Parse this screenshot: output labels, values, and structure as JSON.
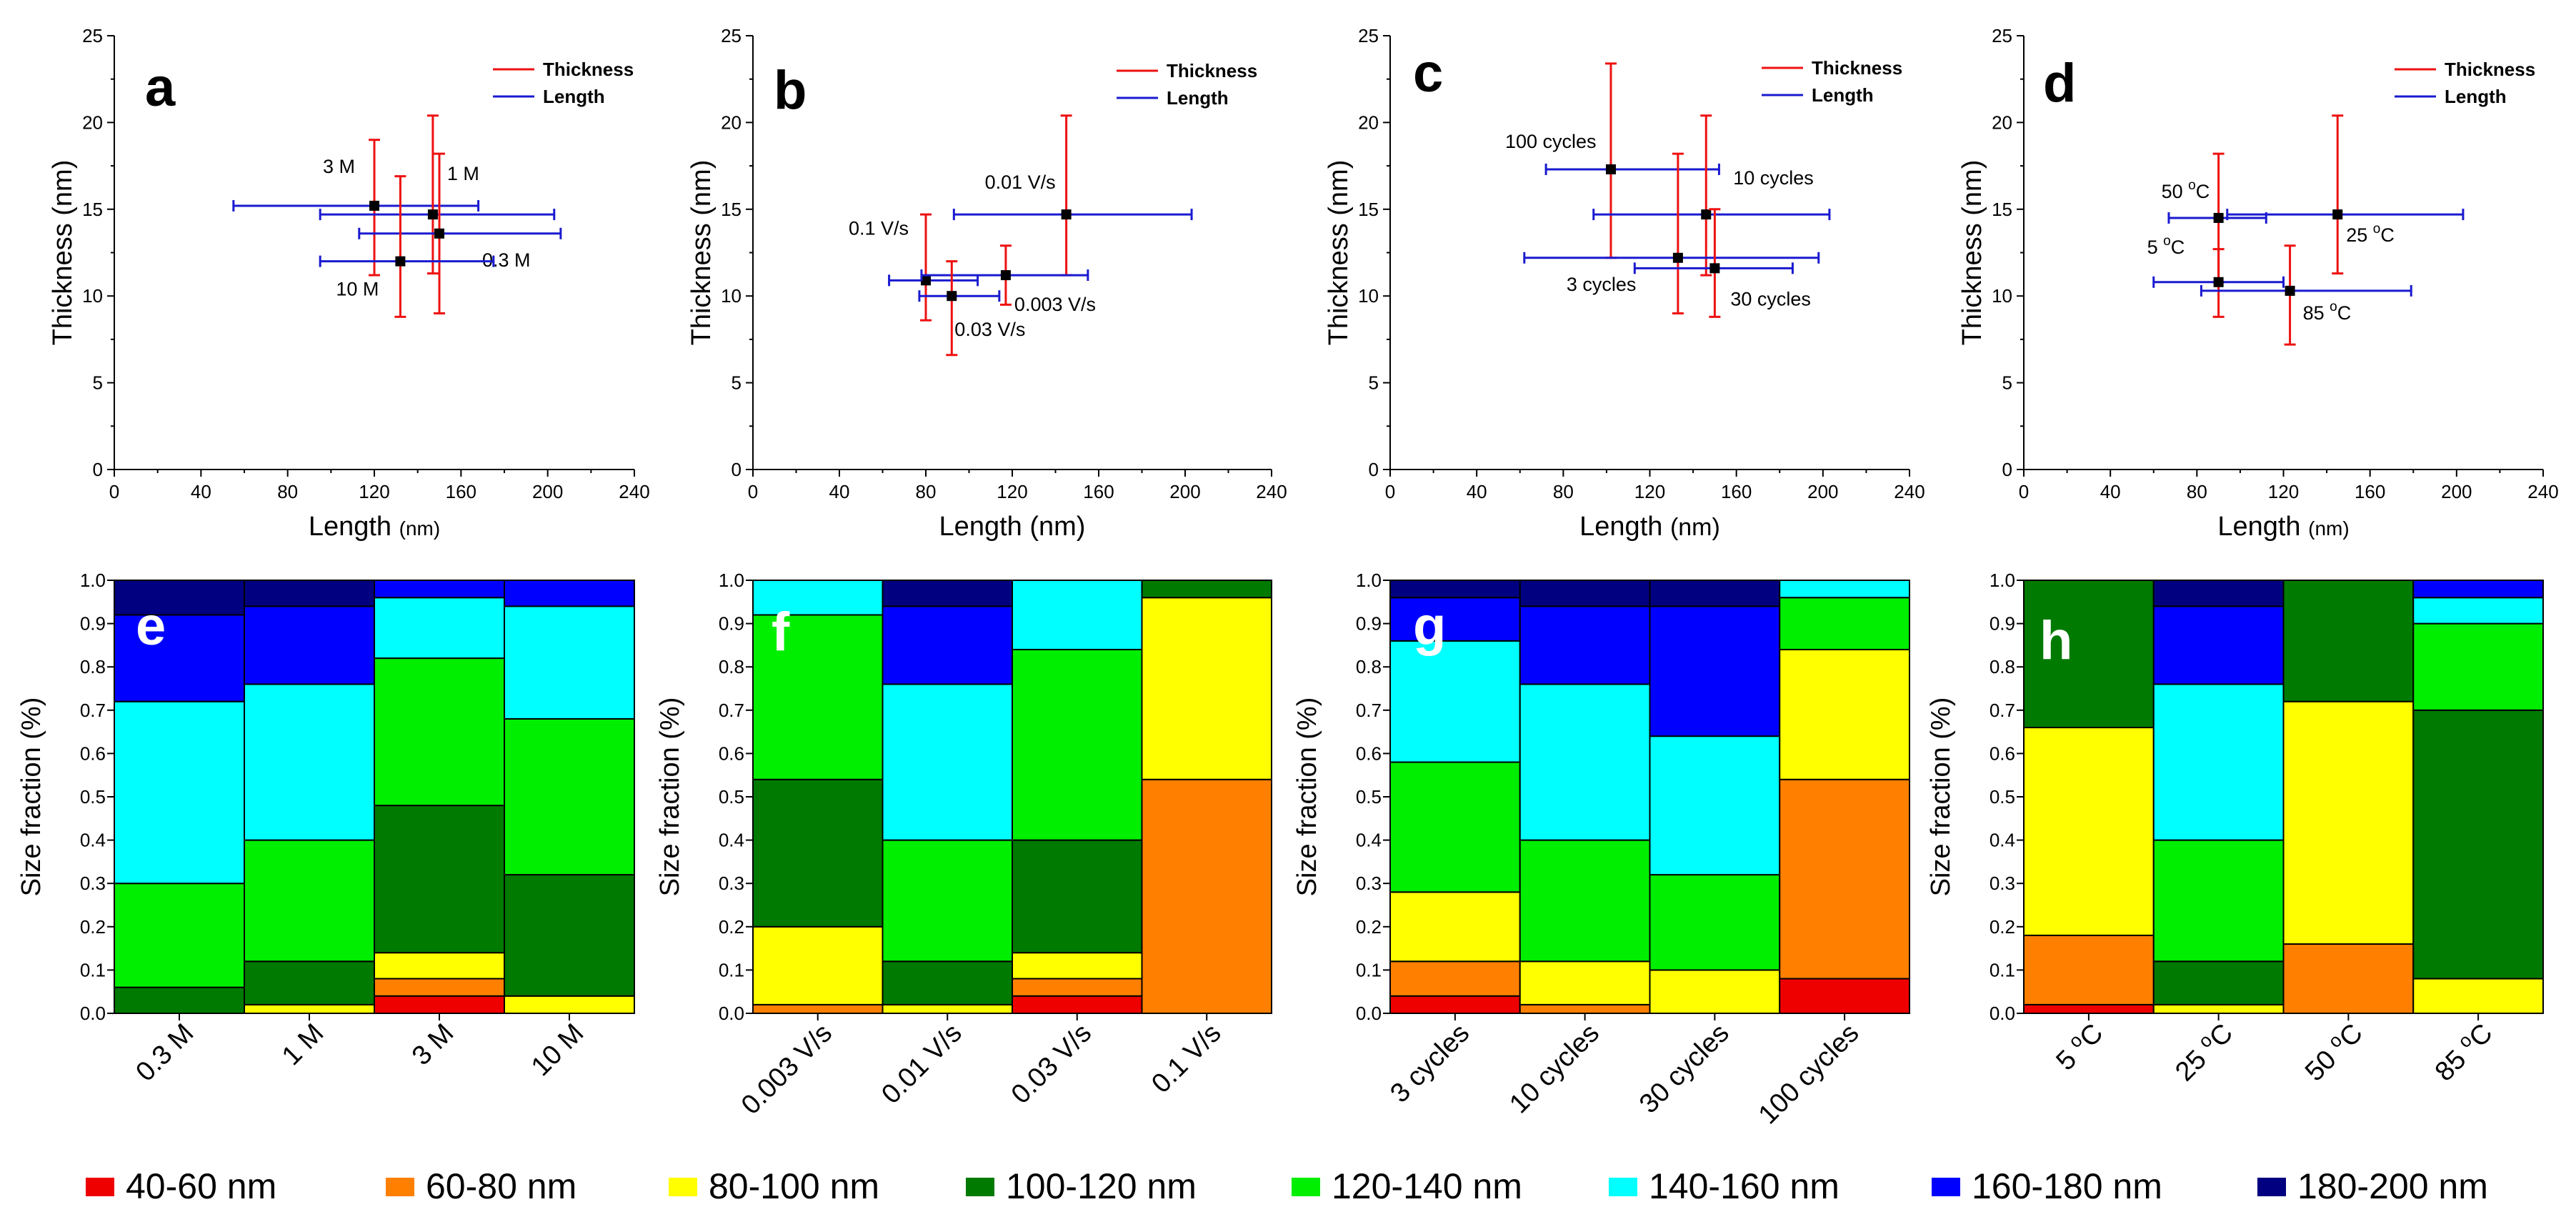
{
  "colors": {
    "thickness": "#ee1111",
    "length": "#1a1ad0",
    "axis": "#000000",
    "marker": "#000000"
  },
  "scatter_axes": {
    "xlabel_nm": "Length (nm)",
    "xlabel_small": "Length ",
    "xlabel_small_unit": "(nm)",
    "ylabel": "Thickness (nm)",
    "legend_thickness": "Thickness",
    "legend_length": "Length"
  },
  "bar_axes": {
    "ylabel": "Size fraction (%)"
  },
  "size_legend": {
    "bins": [
      {
        "label": "40-60 nm",
        "color": "#ee0000"
      },
      {
        "label": "60-80 nm",
        "color": "#ff8000"
      },
      {
        "label": "80-100 nm",
        "color": "#ffff00"
      },
      {
        "label": "100-120 nm",
        "color": "#007a00"
      },
      {
        "label": "120-140 nm",
        "color": "#00ee00"
      },
      {
        "label": "140-160 nm",
        "color": "#00ffff"
      },
      {
        "label": "160-180 nm",
        "color": "#0000ff"
      },
      {
        "label": "180-200 nm",
        "color": "#000080"
      }
    ]
  },
  "chart_data": [
    {
      "panel": "a",
      "type": "scatter",
      "xlabel": "Length (nm)",
      "ylabel": "Thickness (nm)",
      "xlim": [
        0,
        240
      ],
      "ylim": [
        0,
        25
      ],
      "xticks": [
        "0",
        "40",
        "80",
        "120",
        "160",
        "200",
        "240"
      ],
      "yticks": [
        "0",
        "5",
        "10",
        "15",
        "20",
        "25"
      ],
      "legend": [
        "Thickness",
        "Length"
      ],
      "points": [
        {
          "label": "3 M",
          "x": 120,
          "y": 15.2,
          "xerr": [
            55,
            168
          ],
          "yerr": [
            11.2,
            19.0
          ]
        },
        {
          "label": "1 M",
          "x": 147,
          "y": 14.7,
          "xerr": [
            95,
            203
          ],
          "yerr": [
            11.3,
            20.4
          ]
        },
        {
          "label": "0.3 M",
          "x": 150,
          "y": 13.6,
          "xerr": [
            113,
            206
          ],
          "yerr": [
            9.0,
            18.2
          ]
        },
        {
          "label": "10 M",
          "x": 132,
          "y": 12.0,
          "xerr": [
            95,
            175
          ],
          "yerr": [
            8.8,
            16.9
          ]
        }
      ]
    },
    {
      "panel": "b",
      "type": "scatter",
      "xlabel": "Length (nm)",
      "ylabel": "Thickness (nm)",
      "xlim": [
        0,
        240
      ],
      "ylim": [
        0,
        25
      ],
      "xticks": [
        "0",
        "40",
        "80",
        "120",
        "160",
        "200",
        "240"
      ],
      "yticks": [
        "0",
        "5",
        "10",
        "15",
        "20",
        "25"
      ],
      "legend": [
        "Thickness",
        "Length"
      ],
      "points": [
        {
          "label": "0.01 V/s",
          "x": 145,
          "y": 14.7,
          "xerr": [
            93,
            203
          ],
          "yerr": [
            11.2,
            20.4
          ]
        },
        {
          "label": "0.1 V/s",
          "x": 80,
          "y": 10.9,
          "xerr": [
            63,
            104
          ],
          "yerr": [
            8.6,
            14.7
          ]
        },
        {
          "label": "0.003 V/s",
          "x": 117,
          "y": 11.2,
          "xerr": [
            78,
            155
          ],
          "yerr": [
            9.5,
            12.9
          ]
        },
        {
          "label": "0.03 V/s",
          "x": 92,
          "y": 10.0,
          "xerr": [
            77,
            114
          ],
          "yerr": [
            6.6,
            12.0
          ]
        }
      ]
    },
    {
      "panel": "c",
      "type": "scatter",
      "xlabel": "Length (nm)",
      "ylabel": "Thickness (nm)",
      "xlim": [
        0,
        240
      ],
      "ylim": [
        0,
        25
      ],
      "xticks": [
        "0",
        "40",
        "80",
        "120",
        "160",
        "200",
        "240"
      ],
      "yticks": [
        "0",
        "5",
        "10",
        "15",
        "20",
        "25"
      ],
      "legend": [
        "Thickness",
        "Length"
      ],
      "points": [
        {
          "label": "100 cycles",
          "x": 102,
          "y": 17.3,
          "xerr": [
            72,
            152
          ],
          "yerr": [
            12.2,
            23.4
          ]
        },
        {
          "label": "10 cycles",
          "x": 146,
          "y": 14.7,
          "xerr": [
            94,
            203
          ],
          "yerr": [
            11.2,
            20.4
          ]
        },
        {
          "label": "3 cycles",
          "x": 133,
          "y": 12.2,
          "xerr": [
            62,
            198
          ],
          "yerr": [
            9.0,
            18.2
          ]
        },
        {
          "label": "30 cycles",
          "x": 150,
          "y": 11.6,
          "xerr": [
            113,
            186
          ],
          "yerr": [
            8.8,
            15.0
          ]
        }
      ]
    },
    {
      "panel": "d",
      "type": "scatter",
      "xlabel": "Length (nm)",
      "ylabel": "Thickness (nm)",
      "xlim": [
        0,
        240
      ],
      "ylim": [
        0,
        25
      ],
      "xticks": [
        "0",
        "40",
        "80",
        "120",
        "160",
        "200",
        "240"
      ],
      "yticks": [
        "0",
        "5",
        "10",
        "15",
        "20",
        "25"
      ],
      "legend": [
        "Thickness",
        "Length"
      ],
      "points": [
        {
          "label": "50 °C",
          "base": "50 ",
          "sup": "o",
          "unit": "C",
          "x": 90,
          "y": 14.5,
          "xerr": [
            67,
            112
          ],
          "yerr": [
            10.8,
            18.2
          ]
        },
        {
          "label": "25 °C",
          "base": "25 ",
          "sup": "o",
          "unit": "C",
          "x": 145,
          "y": 14.7,
          "xerr": [
            94,
            203
          ],
          "yerr": [
            11.3,
            20.4
          ]
        },
        {
          "label": "5 °C",
          "base": "5 ",
          "sup": "o",
          "unit": "C",
          "x": 90,
          "y": 10.8,
          "xerr": [
            60,
            120
          ],
          "yerr": [
            8.8,
            12.7
          ]
        },
        {
          "label": "85 °C",
          "base": "85 ",
          "sup": "o",
          "unit": "C",
          "x": 123,
          "y": 10.3,
          "xerr": [
            82,
            179
          ],
          "yerr": [
            7.2,
            12.9
          ]
        }
      ]
    },
    {
      "panel": "e",
      "type": "bar",
      "stacked": true,
      "ylabel": "Size fraction (%)",
      "ylim": [
        0,
        1
      ],
      "yticks": [
        "0.0",
        "0.1",
        "0.2",
        "0.3",
        "0.4",
        "0.5",
        "0.6",
        "0.7",
        "0.8",
        "0.9",
        "1.0"
      ],
      "categories": [
        "0.3 M",
        "1 M",
        "3 M",
        "10 M"
      ],
      "series_order": [
        "40-60 nm",
        "60-80 nm",
        "80-100 nm",
        "100-120 nm",
        "120-140 nm",
        "140-160 nm",
        "160-180 nm",
        "180-200 nm"
      ],
      "fractions": [
        [
          0.0,
          0.0,
          0.0,
          0.06,
          0.24,
          0.42,
          0.2,
          0.08
        ],
        [
          0.0,
          0.0,
          0.02,
          0.1,
          0.28,
          0.36,
          0.18,
          0.06
        ],
        [
          0.04,
          0.04,
          0.06,
          0.34,
          0.34,
          0.14,
          0.04,
          0.0
        ],
        [
          0.0,
          0.0,
          0.04,
          0.28,
          0.36,
          0.26,
          0.06,
          0.0
        ]
      ]
    },
    {
      "panel": "f",
      "type": "bar",
      "stacked": true,
      "ylabel": "Size fraction (%)",
      "ylim": [
        0,
        1
      ],
      "yticks": [
        "0.0",
        "0.1",
        "0.2",
        "0.3",
        "0.4",
        "0.5",
        "0.6",
        "0.7",
        "0.8",
        "0.9",
        "1.0"
      ],
      "categories": [
        "0.003 V/s",
        "0.01 V/s",
        "0.03 V/s",
        "0.1 V/s"
      ],
      "series_order": [
        "40-60 nm",
        "60-80 nm",
        "80-100 nm",
        "100-120 nm",
        "120-140 nm",
        "140-160 nm",
        "160-180 nm",
        "180-200 nm"
      ],
      "fractions": [
        [
          0.0,
          0.02,
          0.18,
          0.34,
          0.38,
          0.08,
          0.0,
          0.0
        ],
        [
          0.0,
          0.0,
          0.02,
          0.1,
          0.28,
          0.36,
          0.18,
          0.06
        ],
        [
          0.04,
          0.04,
          0.06,
          0.26,
          0.44,
          0.16,
          0.0,
          0.0
        ],
        [
          0.0,
          0.54,
          0.42,
          0.04,
          0.0,
          0.0,
          0.0,
          0.0
        ]
      ]
    },
    {
      "panel": "g",
      "type": "bar",
      "stacked": true,
      "ylabel": "Size fraction (%)",
      "ylim": [
        0,
        1
      ],
      "yticks": [
        "0.0",
        "0.1",
        "0.2",
        "0.3",
        "0.4",
        "0.5",
        "0.6",
        "0.7",
        "0.8",
        "0.9",
        "1.0"
      ],
      "categories": [
        "3 cycles",
        "10 cycles",
        "30 cycles",
        "100 cycles"
      ],
      "series_order": [
        "40-60 nm",
        "60-80 nm",
        "80-100 nm",
        "100-120 nm",
        "120-140 nm",
        "140-160 nm",
        "160-180 nm",
        "180-200 nm"
      ],
      "fractions": [
        [
          0.04,
          0.08,
          0.16,
          0.0,
          0.3,
          0.28,
          0.1,
          0.04
        ],
        [
          0.0,
          0.02,
          0.1,
          0.0,
          0.28,
          0.36,
          0.18,
          0.06
        ],
        [
          0.0,
          0.0,
          0.1,
          0.0,
          0.22,
          0.32,
          0.3,
          0.06
        ],
        [
          0.08,
          0.46,
          0.3,
          0.0,
          0.12,
          0.04,
          0.0,
          0.0
        ]
      ]
    },
    {
      "panel": "h",
      "type": "bar",
      "stacked": true,
      "ylabel": "Size fraction (%)",
      "ylim": [
        0,
        1
      ],
      "yticks": [
        "0.0",
        "0.1",
        "0.2",
        "0.3",
        "0.4",
        "0.5",
        "0.6",
        "0.7",
        "0.8",
        "0.9",
        "1.0"
      ],
      "categories": [
        "5 °C",
        "25 °C",
        "50 °C",
        "85 °C"
      ],
      "category_parts": [
        {
          "base": "5 ",
          "sup": "o",
          "unit": "C"
        },
        {
          "base": "25 ",
          "sup": "o",
          "unit": "C"
        },
        {
          "base": "50 ",
          "sup": "o",
          "unit": "C"
        },
        {
          "base": "85 ",
          "sup": "o",
          "unit": "C"
        }
      ],
      "series_order": [
        "40-60 nm",
        "60-80 nm",
        "80-100 nm",
        "100-120 nm",
        "120-140 nm",
        "140-160 nm",
        "160-180 nm",
        "180-200 nm"
      ],
      "fractions": [
        [
          0.02,
          0.16,
          0.48,
          0.34,
          0.0,
          0.0,
          0.0,
          0.0
        ],
        [
          0.0,
          0.0,
          0.02,
          0.1,
          0.28,
          0.36,
          0.18,
          0.06
        ],
        [
          0.0,
          0.16,
          0.56,
          0.28,
          0.0,
          0.0,
          0.0,
          0.0
        ],
        [
          0.0,
          0.0,
          0.08,
          0.62,
          0.2,
          0.06,
          0.04,
          0.0
        ]
      ]
    }
  ]
}
